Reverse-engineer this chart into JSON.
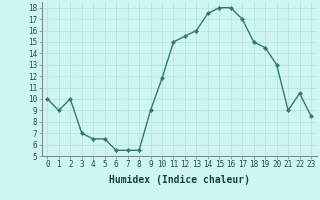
{
  "x": [
    0,
    1,
    2,
    3,
    4,
    5,
    6,
    7,
    8,
    9,
    10,
    11,
    12,
    13,
    14,
    15,
    16,
    17,
    18,
    19,
    20,
    21,
    22,
    23
  ],
  "y": [
    10,
    9,
    10,
    7,
    6.5,
    6.5,
    5.5,
    5.5,
    5.5,
    9,
    11.8,
    15,
    15.5,
    16,
    17.5,
    18,
    18,
    17,
    15,
    14.5,
    13,
    9,
    10.5,
    8.5
  ],
  "line_color": "#2e7d6e",
  "marker": "D",
  "marker_size": 2,
  "bg_color": "#cff5f0",
  "grid_color": "#b8e0db",
  "xlabel": "Humidex (Indice chaleur)",
  "xlim": [
    -0.5,
    23.5
  ],
  "ylim": [
    5,
    18.5
  ],
  "xticks": [
    0,
    1,
    2,
    3,
    4,
    5,
    6,
    7,
    8,
    9,
    10,
    11,
    12,
    13,
    14,
    15,
    16,
    17,
    18,
    19,
    20,
    21,
    22,
    23
  ],
  "yticks": [
    5,
    6,
    7,
    8,
    9,
    10,
    11,
    12,
    13,
    14,
    15,
    16,
    17,
    18
  ],
  "tick_fontsize": 5.5,
  "xlabel_fontsize": 7,
  "line_width": 1.0
}
